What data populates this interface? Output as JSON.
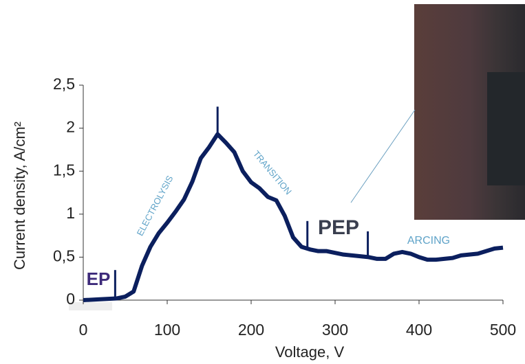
{
  "chart_data": {
    "type": "line",
    "x_label": "Voltage, V",
    "y_label": "Current density, A/cm²",
    "x": [
      0,
      20,
      40,
      50,
      60,
      70,
      80,
      90,
      100,
      110,
      120,
      130,
      140,
      150,
      160,
      170,
      180,
      190,
      200,
      210,
      220,
      230,
      240,
      250,
      260,
      270,
      280,
      290,
      300,
      310,
      320,
      330,
      340,
      350,
      360,
      370,
      380,
      390,
      400,
      410,
      420,
      430,
      440,
      450,
      460,
      470,
      480,
      490,
      500
    ],
    "series": [
      {
        "color": "#0b1f5e",
        "values": [
          0,
          0.01,
          0.02,
          0.04,
          0.1,
          0.4,
          0.62,
          0.78,
          0.9,
          1.03,
          1.17,
          1.38,
          1.65,
          1.78,
          1.93,
          1.83,
          1.72,
          1.5,
          1.37,
          1.3,
          1.2,
          1.16,
          0.98,
          0.73,
          0.62,
          0.59,
          0.57,
          0.57,
          0.55,
          0.53,
          0.52,
          0.51,
          0.5,
          0.48,
          0.48,
          0.54,
          0.56,
          0.54,
          0.5,
          0.47,
          0.47,
          0.48,
          0.49,
          0.52,
          0.53,
          0.54,
          0.57,
          0.6,
          0.61
        ]
      }
    ],
    "xlim": [
      0,
      500
    ],
    "xticks": [
      0,
      100,
      200,
      300,
      400,
      500
    ],
    "ylim": [
      0,
      2.5
    ],
    "yticks": [
      0,
      {
        "value": 0.5,
        "label": "0,5"
      },
      1,
      {
        "value": 1.5,
        "label": "1,5"
      },
      2,
      {
        "value": 2.5,
        "label": "2,5"
      }
    ],
    "markers": [
      {
        "x": 38,
        "y": [
          0,
          0.35
        ]
      },
      {
        "x": 160,
        "y": [
          1.9,
          2.25
        ]
      },
      {
        "x": 267,
        "y": [
          0.6,
          0.92
        ]
      },
      {
        "x": 339,
        "y": [
          0.5,
          0.8
        ]
      }
    ],
    "annotations": [
      "EP",
      "ELECTROLYSIS",
      "TRANSITION",
      "PEP",
      "ARCING"
    ]
  }
}
